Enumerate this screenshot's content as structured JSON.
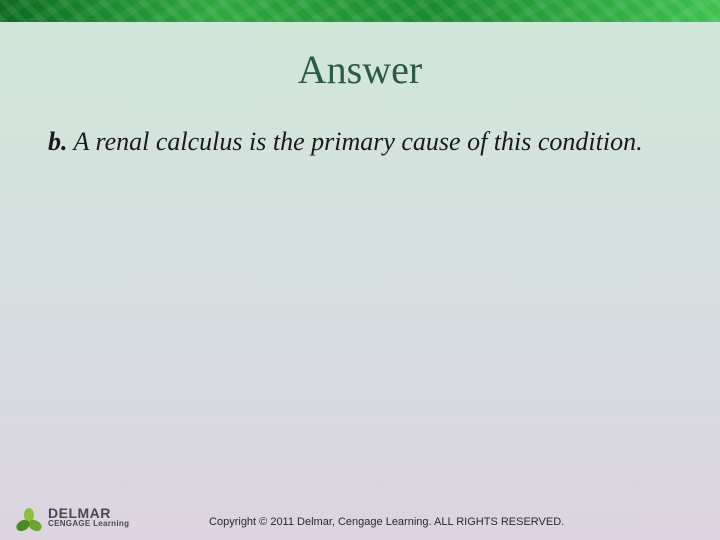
{
  "slide": {
    "background_gradient_top": "#d0e8d8",
    "background_gradient_mid": "#d5dfe0",
    "background_gradient_bottom": "#dcd4e0",
    "top_band_colors": [
      "#0a6b1f",
      "#2fa83f",
      "#1a8a2e",
      "#3fc14f"
    ],
    "title": "Answer",
    "title_color": "#2b5a4a",
    "title_fontsize": 40,
    "answer_letter": "b.",
    "answer_text": " A renal calculus is the primary cause of this condition.",
    "body_fontsize": 26,
    "body_color": "#1a1a1a"
  },
  "footer": {
    "logo_primary": "DELMAR",
    "logo_secondary": "CENGAGE Learning",
    "logo_petal_colors": [
      "#8bbf3f",
      "#6aa52f",
      "#4d8a24"
    ],
    "copyright": "Copyright © 2011 Delmar, Cengage Learning. ALL RIGHTS RESERVED.",
    "copyright_fontsize": 11
  }
}
